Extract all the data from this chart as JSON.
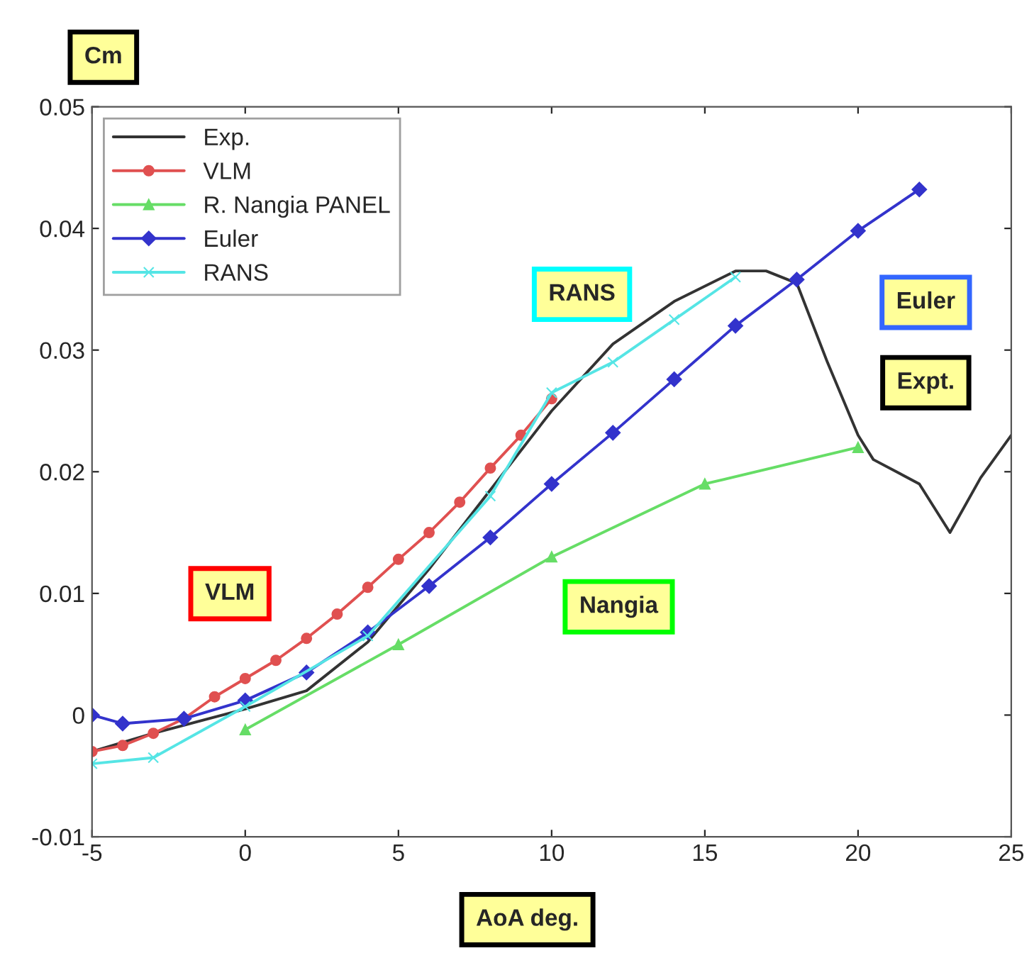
{
  "chart_data": {
    "type": "line",
    "xlabel": "AoA deg.",
    "ylabel": "Cm",
    "xlim": [
      -5,
      25
    ],
    "ylim": [
      -0.01,
      0.05
    ],
    "xticks": [
      -5,
      0,
      5,
      10,
      15,
      20,
      25
    ],
    "yticks": [
      {
        "value": -0.01,
        "label": "-0.01"
      },
      0,
      0.01,
      0.02,
      0.03,
      0.04,
      0.05
    ],
    "grid": false,
    "legend": "top left",
    "series": [
      {
        "name": "Exp.",
        "color": "#333333",
        "marker": "none",
        "x": [
          -5,
          -3,
          0,
          2,
          4,
          6,
          8,
          10,
          12,
          14,
          16,
          17,
          18,
          19,
          20,
          20.5,
          22,
          23,
          24,
          25
        ],
        "values": [
          -0.003,
          -0.0015,
          0.0005,
          0.002,
          0.006,
          0.012,
          0.0185,
          0.025,
          0.0305,
          0.034,
          0.0365,
          0.0365,
          0.0355,
          0.029,
          0.023,
          0.021,
          0.019,
          0.015,
          0.0195,
          0.023
        ]
      },
      {
        "name": "VLM",
        "color": "#e05050",
        "marker": "circle",
        "x": [
          -5,
          -4,
          -3,
          -2,
          -1,
          0,
          1,
          2,
          3,
          4,
          5,
          6,
          7,
          8,
          9,
          10
        ],
        "values": [
          -0.003,
          -0.0025,
          -0.0015,
          -0.0003,
          0.0015,
          0.003,
          0.0045,
          0.0063,
          0.0083,
          0.0105,
          0.0128,
          0.015,
          0.0175,
          0.0203,
          0.023,
          0.026
        ]
      },
      {
        "name": "R. Nangia PANEL",
        "color": "#66dd66",
        "marker": "triangle",
        "x": [
          0,
          5,
          10,
          15,
          20
        ],
        "values": [
          -0.0012,
          0.0058,
          0.013,
          0.019,
          0.022
        ]
      },
      {
        "name": "Euler",
        "color": "#3333cc",
        "marker": "diamond",
        "x": [
          -5,
          -4,
          -2,
          0,
          2,
          4,
          6,
          8,
          10,
          12,
          14,
          16,
          18,
          20,
          22
        ],
        "values": [
          0.0,
          -0.0007,
          -0.0003,
          0.0012,
          0.0035,
          0.0068,
          0.0106,
          0.0146,
          0.019,
          0.0232,
          0.0276,
          0.032,
          0.0358,
          0.0398,
          0.0432
        ]
      },
      {
        "name": "RANS",
        "color": "#55e5e5",
        "marker": "cross",
        "x": [
          -5,
          -3,
          0,
          4,
          8,
          10,
          12,
          14,
          16
        ],
        "values": [
          -0.004,
          -0.0035,
          0.0007,
          0.0065,
          0.018,
          0.0265,
          0.029,
          0.0325,
          0.036
        ]
      }
    ],
    "annotations": [
      "RANS",
      "Euler",
      "Expt.",
      "VLM",
      "Nangia"
    ]
  }
}
